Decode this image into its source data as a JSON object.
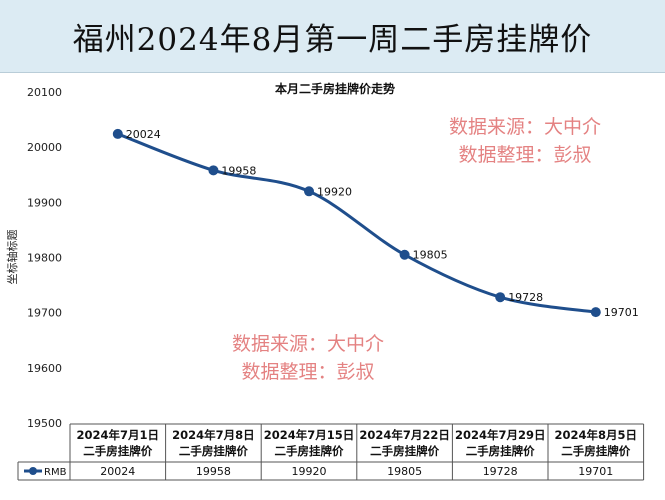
{
  "banner": {
    "title": "福州2024年8月第一周二手房挂牌价"
  },
  "watermarks": [
    {
      "line1": "数据来源：大中介",
      "line2": "数据整理：彭叔"
    },
    {
      "line1": "数据来源：大中介",
      "line2": "数据整理：彭叔"
    }
  ],
  "colors": {
    "line": "#1f4e8c",
    "banner_bg": "#dcebf3",
    "watermark": "#e06d6d"
  },
  "chart_data": {
    "type": "line",
    "title": "本月二手房挂牌价走势",
    "ylabel": "坐标轴标题",
    "ylim": [
      19500,
      20100
    ],
    "yticks": [
      19500,
      19600,
      19700,
      19800,
      19900,
      20000,
      20100
    ],
    "categories": [
      "2024年7月1日二手房挂牌价",
      "2024年7月8日二手房挂牌价",
      "2024年7月15日二手房挂牌价",
      "2024年7月22日二手房挂牌价",
      "2024年7月29日二手房挂牌价",
      "2024年8月5日二手房挂牌价"
    ],
    "category_lines": [
      [
        "2024年7月1日",
        "二手房挂牌价"
      ],
      [
        "2024年7月8日",
        "二手房挂牌价"
      ],
      [
        "2024年7月15日",
        "二手房挂牌价"
      ],
      [
        "2024年7月22日",
        "二手房挂牌价"
      ],
      [
        "2024年7月29日",
        "二手房挂牌价"
      ],
      [
        "2024年8月5日",
        "二手房挂牌价"
      ]
    ],
    "series": [
      {
        "name": "RMB",
        "values": [
          20024,
          19958,
          19920,
          19805,
          19728,
          19701
        ]
      }
    ],
    "grid": false,
    "legend": "table-left"
  }
}
